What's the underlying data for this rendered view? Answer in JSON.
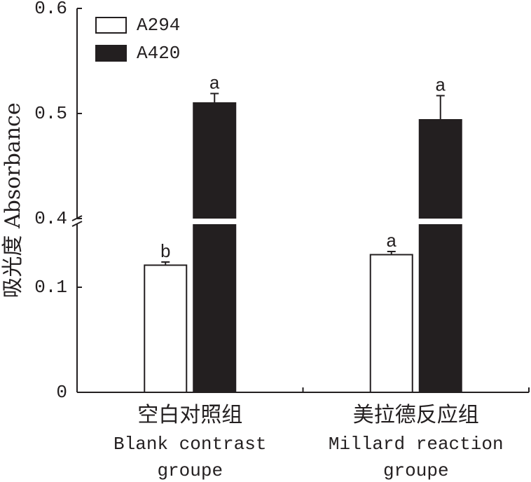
{
  "chart_data": {
    "type": "bar",
    "y_label": "吸光度 Absorbance",
    "categories": [
      "空白对照组",
      "美拉德反应组"
    ],
    "category_english": [
      [
        "Blank contrast",
        "groupe"
      ],
      [
        "Millard reaction",
        "groupe"
      ]
    ],
    "series": [
      {
        "name": "A294",
        "color": "#ffffff",
        "values": [
          0.121,
          0.131
        ],
        "errors": [
          0.003,
          0.003
        ],
        "letters": [
          "b",
          "a"
        ]
      },
      {
        "name": "A420",
        "color": "#231f20",
        "values": [
          0.51,
          0.494
        ],
        "errors": [
          0.009,
          0.023
        ],
        "letters": [
          "a",
          "a"
        ]
      }
    ],
    "ylim": [
      0,
      0.6
    ],
    "ybreak": [
      0.16,
      0.4
    ],
    "yticks": [
      0,
      0.1,
      0.4,
      0.5,
      0.6
    ],
    "legend": "upper-left"
  }
}
